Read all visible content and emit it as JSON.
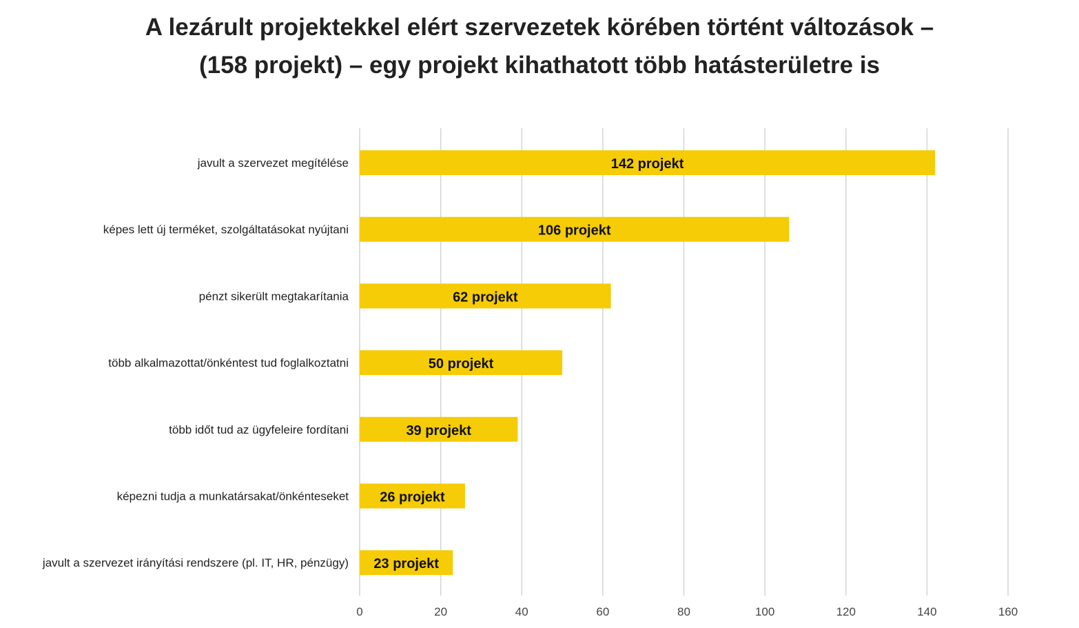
{
  "chart_data": {
    "type": "bar",
    "orientation": "horizontal",
    "title_lines": [
      "A lezárult projektekkel elért szervezetek körében történt változások –",
      "(158 projekt) – egy projekt kihathatott több hatásterületre is"
    ],
    "categories": [
      "javult a szervezet megítélése",
      "képes lett új terméket, szolgáltatásokat nyújtani",
      "pénzt sikerült megtakarítania",
      "több alkalmazottat/önkéntest tud foglalkoztatni",
      "több időt tud az ügyfeleire fordítani",
      "képezni tudja a munkatársakat/önkénteseket",
      "javult a szervezet irányítási rendszere (pl. IT, HR, pénzügy)"
    ],
    "values": [
      142,
      106,
      62,
      50,
      39,
      26,
      23
    ],
    "data_labels": [
      "142 projekt",
      "106 projekt",
      "62 projekt",
      "50 projekt",
      "39 projekt",
      "26 projekt",
      "23 projekt"
    ],
    "xlim": [
      0,
      160
    ],
    "xticks": [
      0,
      20,
      40,
      60,
      80,
      100,
      120,
      140,
      160
    ],
    "grid": true,
    "colors": {
      "bar": "#F5CC05",
      "grid": "#D4D4D4",
      "text": "#222222"
    }
  }
}
